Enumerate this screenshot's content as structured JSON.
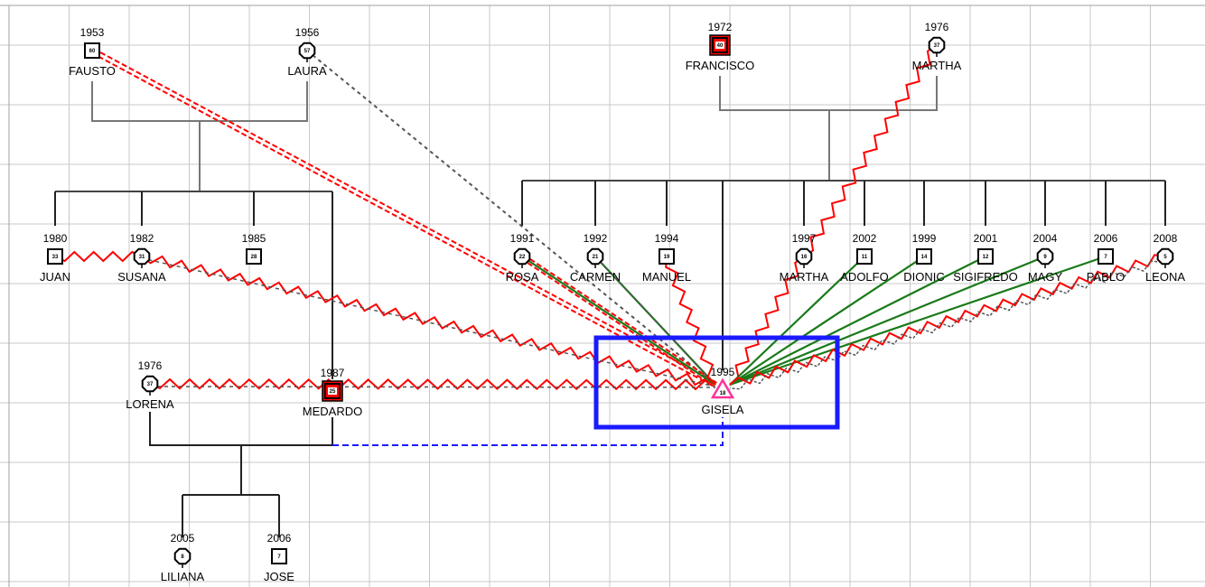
{
  "colors": {
    "grid": "#c8c8c8",
    "family_line": "#000000",
    "close_relation": "#ff0000",
    "harmonious_relation": "#1a7a1a",
    "distant_relation": "#555555",
    "separation": "#1a1aff",
    "highlight_box": "#1a1aff",
    "index_marker": "#ff3399"
  },
  "people": [
    {
      "id": "fausto",
      "name": "FAUSTO",
      "year": "1953",
      "age": "60",
      "sex": "male"
    },
    {
      "id": "laura",
      "name": "LAURA",
      "year": "1956",
      "age": "57",
      "sex": "female"
    },
    {
      "id": "francisco",
      "name": "FRANCISCO",
      "year": "1972",
      "age": "40",
      "sex": "male",
      "highlight": true
    },
    {
      "id": "martha_m",
      "name": "MARTHA",
      "year": "1976",
      "age": "37",
      "sex": "female"
    },
    {
      "id": "juan",
      "name": "JUAN",
      "year": "1980",
      "age": "33",
      "sex": "male"
    },
    {
      "id": "susana",
      "name": "SUSANA",
      "year": "1982",
      "age": "31",
      "sex": "female"
    },
    {
      "id": "p1985",
      "name": "",
      "year": "1985",
      "age": "28",
      "sex": "male"
    },
    {
      "id": "rosa",
      "name": "ROSA",
      "year": "1991",
      "age": "22",
      "sex": "female"
    },
    {
      "id": "carmen",
      "name": "CARMEN",
      "year": "1992",
      "age": "21",
      "sex": "female"
    },
    {
      "id": "manuel",
      "name": "MANUEL",
      "year": "1994",
      "age": "19",
      "sex": "male"
    },
    {
      "id": "martha_c",
      "name": "MARTHA",
      "year": "1997",
      "age": "16",
      "sex": "female"
    },
    {
      "id": "adolfo",
      "name": "ADOLFO",
      "year": "2002",
      "age": "11",
      "sex": "male"
    },
    {
      "id": "dionic",
      "name": "DIONIC",
      "year": "1999",
      "age": "14",
      "sex": "male"
    },
    {
      "id": "sigifredo",
      "name": "SIGIFREDO",
      "year": "2001",
      "age": "12",
      "sex": "male"
    },
    {
      "id": "magy",
      "name": "MAGY",
      "year": "2004",
      "age": "9",
      "sex": "female"
    },
    {
      "id": "pablo",
      "name": "PABLO",
      "year": "2006",
      "age": "7",
      "sex": "male"
    },
    {
      "id": "leona",
      "name": "LEONA",
      "year": "2008",
      "age": "5",
      "sex": "female"
    },
    {
      "id": "lorena",
      "name": "LORENA",
      "year": "1976",
      "age": "37",
      "sex": "female"
    },
    {
      "id": "medardo",
      "name": "MEDARDO",
      "year": "1987",
      "age": "25",
      "sex": "male",
      "highlight": true
    },
    {
      "id": "gisela",
      "name": "GISELA",
      "year": "1995",
      "age": "18",
      "sex": "index"
    },
    {
      "id": "liliana",
      "name": "LILIANA",
      "year": "2005",
      "age": "8",
      "sex": "female"
    },
    {
      "id": "jose",
      "name": "JOSE",
      "year": "2006",
      "age": "7",
      "sex": "male"
    }
  ],
  "relations": [
    {
      "from": "fausto",
      "to": "gisela",
      "type": "distant-double"
    },
    {
      "from": "laura",
      "to": "gisela",
      "type": "distant"
    },
    {
      "from": "juan",
      "to": "susana",
      "type": "conflict"
    },
    {
      "from": "susana",
      "to": "gisela",
      "type": "conflict"
    },
    {
      "from": "lorena",
      "to": "gisela",
      "type": "conflict"
    },
    {
      "from": "martha_m",
      "to": "martha_c",
      "type": "conflict"
    },
    {
      "from": "rosa",
      "to": "gisela",
      "type": "close"
    },
    {
      "from": "rosa",
      "to": "gisela",
      "type": "distant-double"
    },
    {
      "from": "carmen",
      "to": "gisela",
      "type": "close"
    },
    {
      "from": "carmen",
      "to": "gisela",
      "type": "distant"
    },
    {
      "from": "manuel",
      "to": "gisela",
      "type": "conflict"
    },
    {
      "from": "martha_c",
      "to": "gisela",
      "type": "conflict"
    },
    {
      "from": "adolfo",
      "to": "gisela",
      "type": "close"
    },
    {
      "from": "dionic",
      "to": "gisela",
      "type": "close"
    },
    {
      "from": "sigifredo",
      "to": "gisela",
      "type": "close"
    },
    {
      "from": "magy",
      "to": "gisela",
      "type": "close"
    },
    {
      "from": "pablo",
      "to": "gisela",
      "type": "close"
    },
    {
      "from": "leona",
      "to": "gisela",
      "type": "conflict"
    },
    {
      "from": "leona",
      "to": "gisela",
      "type": "conflict-distant"
    }
  ]
}
